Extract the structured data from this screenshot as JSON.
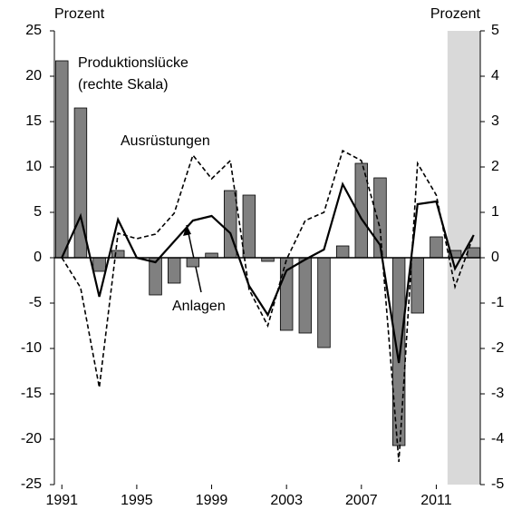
{
  "chart_data": {
    "type": "bar-line",
    "y_label_left": "Prozent",
    "y_label_right": "Prozent",
    "x": [
      1991,
      1992,
      1993,
      1994,
      1995,
      1996,
      1997,
      1998,
      1999,
      2000,
      2001,
      2002,
      2003,
      2004,
      2005,
      2006,
      2007,
      2008,
      2009,
      2010,
      2011,
      2012,
      2013
    ],
    "xlim": [
      1990.6,
      2013.35
    ],
    "xticks": [
      1991,
      1995,
      1999,
      2003,
      2007,
      2011
    ],
    "ylim": [
      -25,
      25
    ],
    "yticks": [
      -25,
      -20,
      -15,
      -10,
      -5,
      0,
      5,
      10,
      15,
      20,
      25
    ],
    "y2lim": [
      -5,
      5
    ],
    "y2ticks": [
      -5,
      -4,
      -3,
      -2,
      -1,
      0,
      1,
      2,
      3,
      4,
      5
    ],
    "shaded_xrange": [
      2011.6,
      2013.35
    ],
    "shade_color": "#d9d9d9",
    "series": [
      {
        "name": "Produktionslücke",
        "axis": "y2",
        "kind": "bar",
        "color": "#808080",
        "values": [
          4.34,
          3.3,
          -0.3,
          0.16,
          0,
          -0.82,
          -0.56,
          -0.2,
          0.1,
          1.48,
          1.38,
          -0.08,
          -1.6,
          -1.66,
          -1.98,
          0.26,
          2.08,
          1.76,
          -4.14,
          -1.22,
          0.46,
          0.16,
          0.22
        ]
      },
      {
        "name": "Anlagen",
        "kind": "line",
        "dash": false,
        "color": "#000000",
        "values": [
          0,
          4.6,
          -4.3,
          4.2,
          0,
          -0.5,
          1.8,
          4.1,
          4.6,
          2.7,
          -3.1,
          -6.3,
          -1.4,
          -0.2,
          0.9,
          8.1,
          4.3,
          1.4,
          -11.6,
          5.9,
          6.2,
          -1.2,
          2.5
        ]
      },
      {
        "name": "Ausrüstungen",
        "kind": "line",
        "dash": true,
        "color": "#000000",
        "values": [
          0,
          -3.3,
          -14.3,
          2.7,
          2.1,
          2.6,
          4.9,
          11.3,
          8.7,
          10.7,
          -3.5,
          -7.5,
          -0.2,
          4.1,
          5.0,
          11.8,
          10.7,
          3.2,
          -22.5,
          10.4,
          6.9,
          -3.2,
          2.5
        ]
      }
    ],
    "annotations": [
      "Produktionslücke",
      "(rechte Skala)",
      "Ausrüstungen",
      "Anlagen"
    ]
  }
}
